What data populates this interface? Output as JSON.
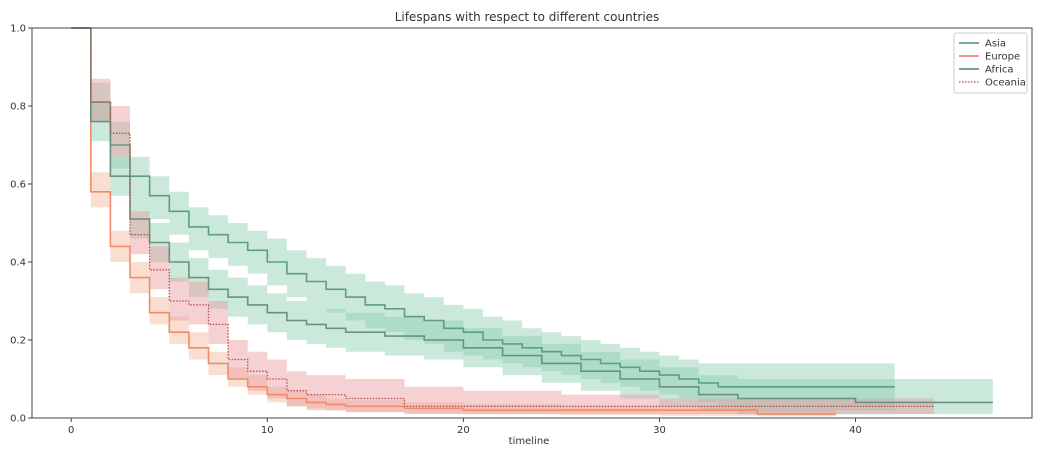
{
  "chart_data": {
    "type": "line",
    "subtype": "kaplan-meier-step-with-confidence-bands",
    "title": "Lifespans with respect to different countries",
    "xlabel": "timeline",
    "ylabel": "",
    "xlim": [
      -2,
      49
    ],
    "ylim": [
      0,
      1
    ],
    "x_ticks": [
      0,
      10,
      20,
      30,
      40
    ],
    "y_ticks": [
      0.0,
      0.2,
      0.4,
      0.6,
      0.8,
      1.0
    ],
    "x_tick_labels": [
      "0",
      "10",
      "20",
      "30",
      "40"
    ],
    "y_tick_labels": [
      "0.0",
      "0.2",
      "0.4",
      "0.6",
      "0.8",
      "1.0"
    ],
    "grid": false,
    "legend_position": "top-right",
    "series": [
      {
        "name": "Asia",
        "color": "#5e9e80",
        "band_color": "#8ccfb0",
        "line_style": "solid",
        "x": [
          0,
          1,
          2,
          3,
          4,
          5,
          6,
          7,
          8,
          9,
          10,
          11,
          12,
          13,
          14,
          15,
          16,
          17,
          18,
          19,
          20,
          21,
          22,
          23,
          24,
          25,
          26,
          27,
          28,
          29,
          30,
          31,
          32,
          33,
          34,
          42
        ],
        "y": [
          1.0,
          0.81,
          0.7,
          0.62,
          0.57,
          0.53,
          0.49,
          0.47,
          0.45,
          0.43,
          0.4,
          0.37,
          0.35,
          0.33,
          0.31,
          0.29,
          0.28,
          0.26,
          0.25,
          0.23,
          0.22,
          0.2,
          0.19,
          0.18,
          0.17,
          0.16,
          0.15,
          0.14,
          0.13,
          0.12,
          0.11,
          0.1,
          0.09,
          0.08,
          0.08,
          0.08
        ],
        "lower": [
          1.0,
          0.76,
          0.64,
          0.56,
          0.51,
          0.47,
          0.43,
          0.41,
          0.39,
          0.37,
          0.34,
          0.31,
          0.29,
          0.27,
          0.25,
          0.23,
          0.22,
          0.2,
          0.19,
          0.17,
          0.16,
          0.15,
          0.14,
          0.13,
          0.12,
          0.11,
          0.1,
          0.09,
          0.08,
          0.07,
          0.06,
          0.05,
          0.04,
          0.03,
          0.02,
          0.02
        ],
        "upper": [
          1.0,
          0.86,
          0.76,
          0.67,
          0.62,
          0.58,
          0.54,
          0.52,
          0.5,
          0.48,
          0.46,
          0.43,
          0.41,
          0.39,
          0.37,
          0.35,
          0.34,
          0.32,
          0.31,
          0.29,
          0.28,
          0.26,
          0.25,
          0.23,
          0.22,
          0.21,
          0.2,
          0.19,
          0.18,
          0.17,
          0.16,
          0.15,
          0.14,
          0.14,
          0.14,
          0.14
        ]
      },
      {
        "name": "Europe",
        "color": "#f08c6c",
        "band_color": "#f5b59c",
        "line_style": "solid",
        "x": [
          0,
          1,
          2,
          3,
          4,
          5,
          6,
          7,
          8,
          9,
          10,
          11,
          12,
          13,
          14,
          17,
          20,
          25,
          30,
          35,
          39
        ],
        "y": [
          1.0,
          0.58,
          0.44,
          0.36,
          0.27,
          0.22,
          0.18,
          0.14,
          0.1,
          0.08,
          0.06,
          0.05,
          0.04,
          0.035,
          0.03,
          0.025,
          0.02,
          0.02,
          0.02,
          0.01,
          0.01
        ],
        "lower": [
          1.0,
          0.54,
          0.4,
          0.32,
          0.24,
          0.19,
          0.15,
          0.11,
          0.08,
          0.06,
          0.04,
          0.03,
          0.025,
          0.02,
          0.015,
          0.012,
          0.01,
          0.008,
          0.006,
          0.004,
          0.003
        ],
        "upper": [
          1.0,
          0.63,
          0.48,
          0.4,
          0.31,
          0.26,
          0.22,
          0.17,
          0.13,
          0.11,
          0.08,
          0.07,
          0.06,
          0.05,
          0.045,
          0.04,
          0.035,
          0.03,
          0.03,
          0.02,
          0.02
        ]
      },
      {
        "name": "Africa",
        "color": "#6a927a",
        "band_color": "#8ccfb0",
        "line_style": "solid",
        "x": [
          0,
          1,
          2,
          3,
          4,
          5,
          6,
          7,
          8,
          9,
          10,
          11,
          12,
          13,
          14,
          16,
          18,
          20,
          22,
          24,
          26,
          28,
          30,
          32,
          34,
          40,
          47
        ],
        "y": [
          1.0,
          0.76,
          0.62,
          0.51,
          0.45,
          0.4,
          0.36,
          0.33,
          0.31,
          0.29,
          0.27,
          0.25,
          0.24,
          0.23,
          0.22,
          0.21,
          0.2,
          0.18,
          0.16,
          0.14,
          0.12,
          0.1,
          0.08,
          0.06,
          0.05,
          0.04,
          0.04
        ],
        "lower": [
          1.0,
          0.71,
          0.57,
          0.46,
          0.4,
          0.35,
          0.31,
          0.28,
          0.26,
          0.24,
          0.22,
          0.2,
          0.19,
          0.18,
          0.17,
          0.16,
          0.15,
          0.13,
          0.11,
          0.09,
          0.07,
          0.05,
          0.03,
          0.02,
          0.01,
          0.01,
          0.01
        ],
        "upper": [
          1.0,
          0.81,
          0.67,
          0.56,
          0.5,
          0.45,
          0.41,
          0.38,
          0.36,
          0.34,
          0.32,
          0.3,
          0.29,
          0.28,
          0.27,
          0.26,
          0.25,
          0.23,
          0.21,
          0.19,
          0.17,
          0.15,
          0.13,
          0.11,
          0.1,
          0.1,
          0.1
        ]
      },
      {
        "name": "Oceania",
        "color": "#b5534a",
        "band_color": "#e89aa0",
        "line_style": "dotted",
        "x": [
          0,
          1,
          2,
          3,
          4,
          5,
          6,
          7,
          8,
          9,
          10,
          11,
          12,
          14,
          17,
          20,
          25,
          30,
          35,
          44
        ],
        "y": [
          1.0,
          0.81,
          0.73,
          0.47,
          0.38,
          0.3,
          0.29,
          0.24,
          0.15,
          0.12,
          0.1,
          0.07,
          0.06,
          0.05,
          0.03,
          0.03,
          0.03,
          0.03,
          0.03,
          0.03
        ],
        "lower": [
          1.0,
          0.76,
          0.67,
          0.42,
          0.33,
          0.25,
          0.24,
          0.19,
          0.1,
          0.07,
          0.05,
          0.03,
          0.02,
          0.015,
          0.01,
          0.01,
          0.01,
          0.01,
          0.01,
          0.01
        ],
        "upper": [
          1.0,
          0.87,
          0.8,
          0.53,
          0.44,
          0.36,
          0.35,
          0.3,
          0.2,
          0.17,
          0.15,
          0.12,
          0.11,
          0.1,
          0.08,
          0.07,
          0.06,
          0.05,
          0.05,
          0.05
        ]
      }
    ]
  }
}
